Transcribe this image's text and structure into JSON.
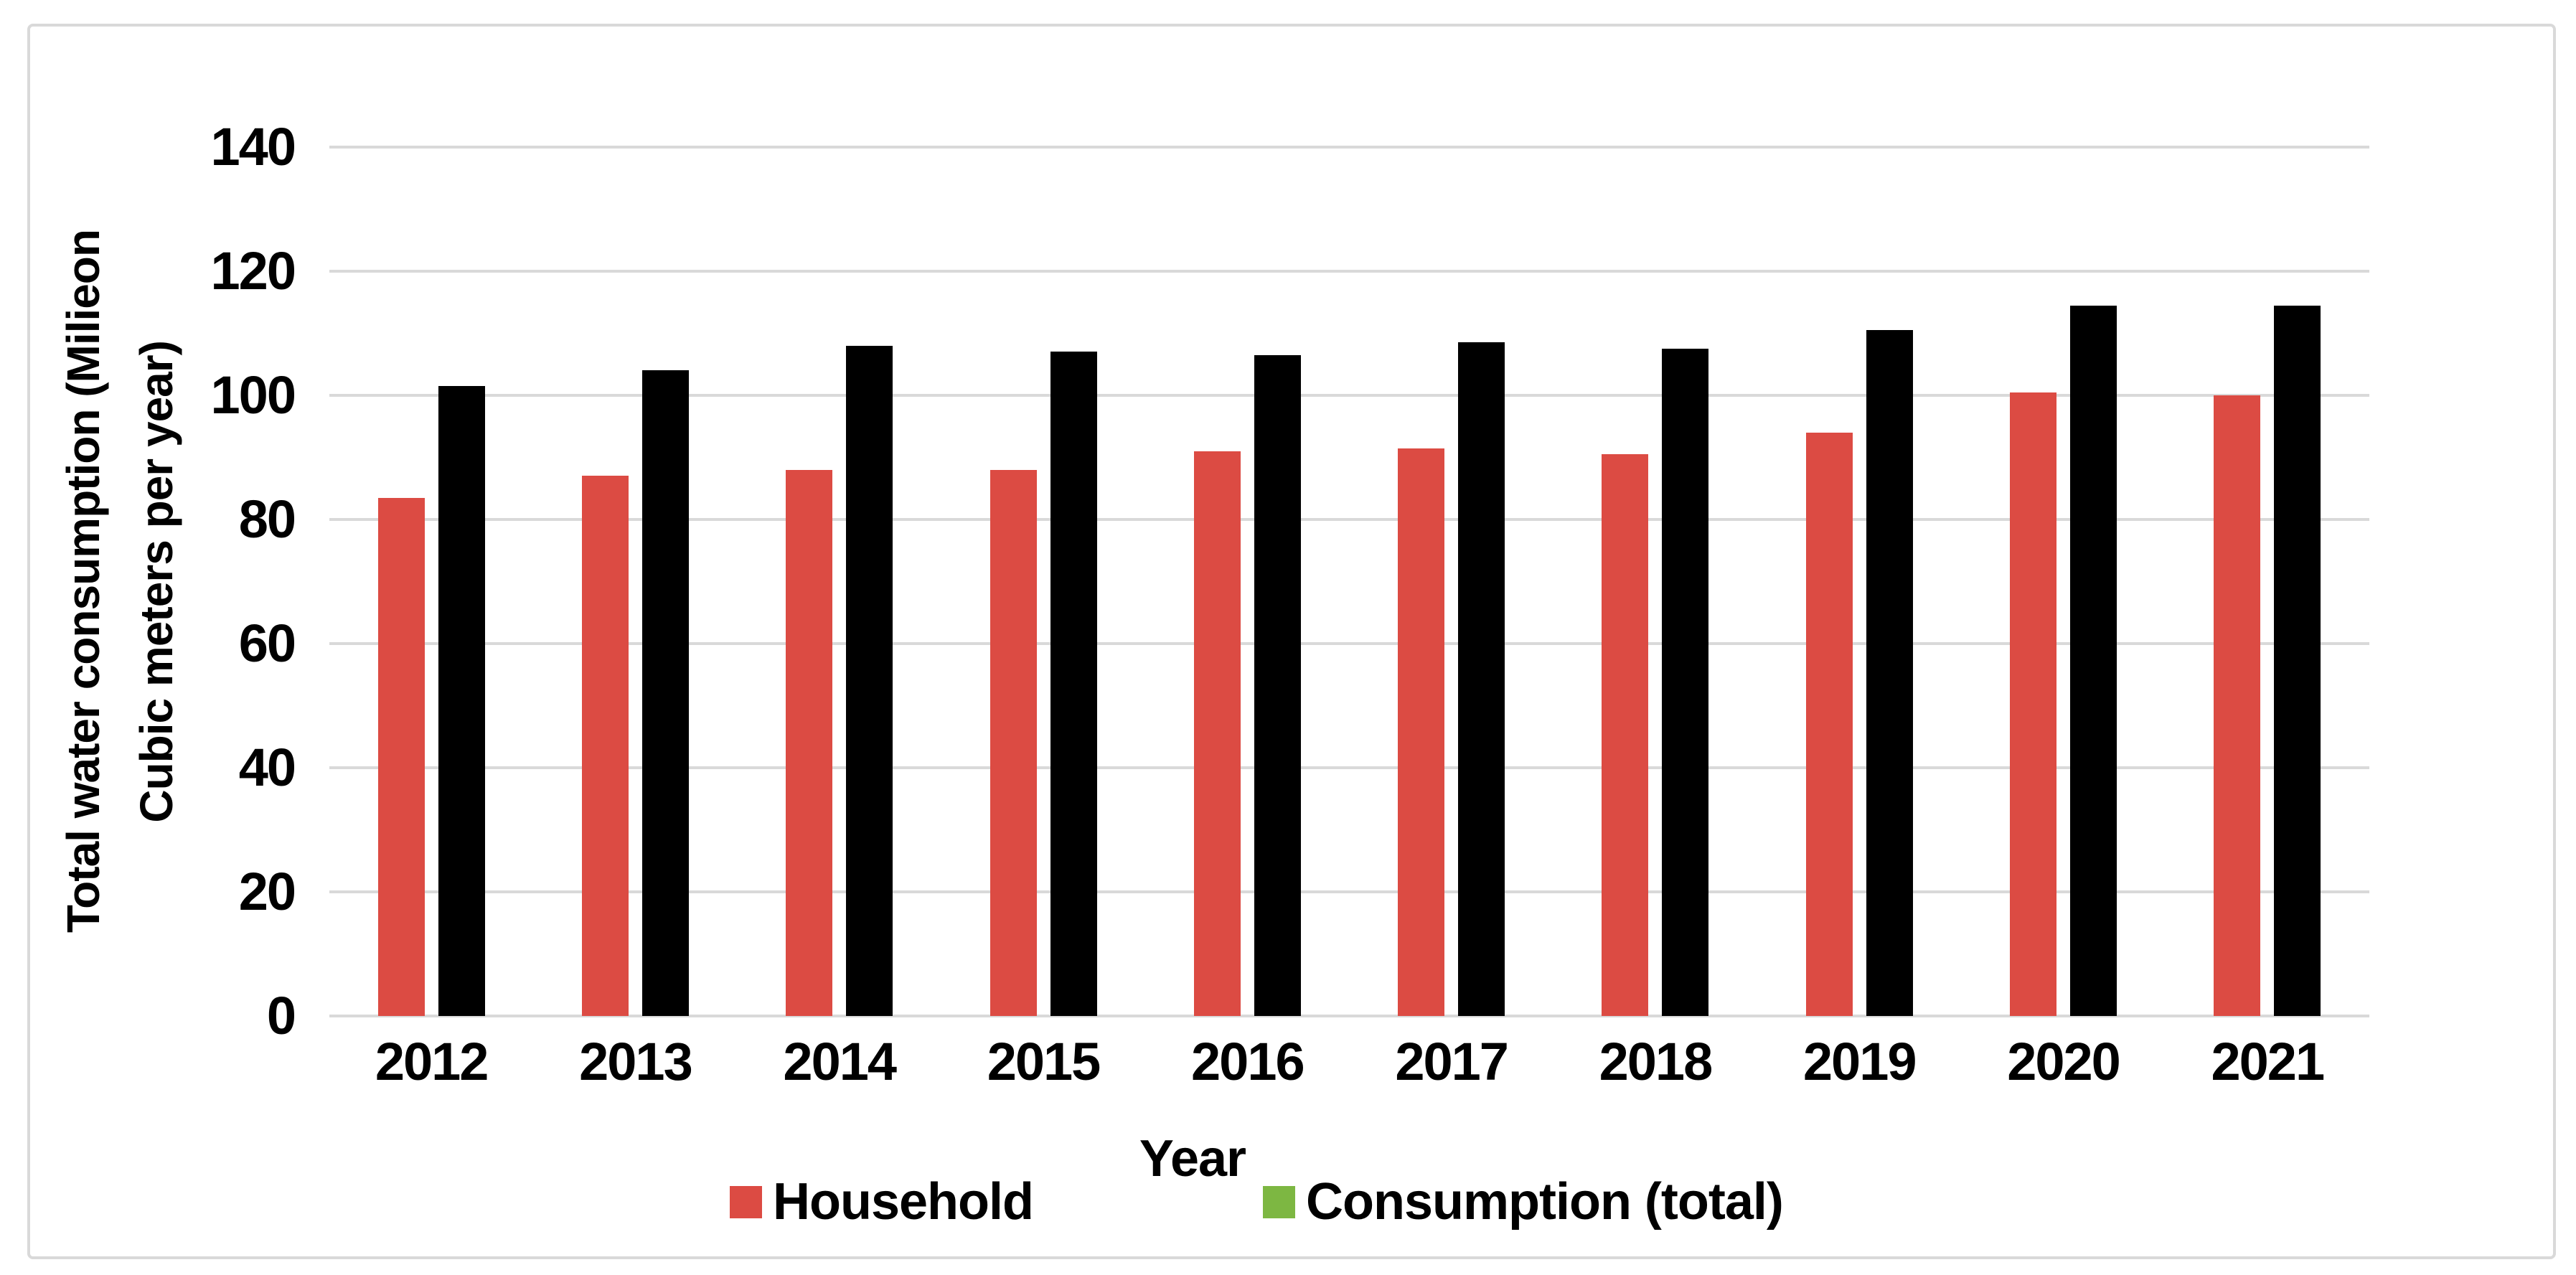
{
  "chart_data": {
    "type": "bar",
    "title": "",
    "xlabel": "Year",
    "ylabel_lines": [
      "Total water consumption (Milieon",
      "Cubic meters per year)"
    ],
    "categories": [
      "2012",
      "2013",
      "2014",
      "2015",
      "2016",
      "2017",
      "2018",
      "2019",
      "2020",
      "2021"
    ],
    "series": [
      {
        "name": "Household",
        "values": [
          83.5,
          87,
          88,
          88,
          91,
          91.5,
          90.5,
          94,
          100.5,
          100
        ],
        "bar_color": "#dc4b43",
        "legend_color": "#dc4b43"
      },
      {
        "name": "Consumption (total)",
        "values": [
          101.5,
          104,
          108,
          107,
          106.5,
          108.5,
          107.5,
          110.5,
          114.5,
          114.5
        ],
        "bar_color": "#000000",
        "legend_color": "#7db742"
      }
    ],
    "ylim": [
      0,
      140
    ],
    "ytick_step": 20,
    "yticks": [
      0,
      20,
      40,
      60,
      80,
      100,
      120,
      140
    ],
    "grid": true,
    "legend_position": "bottom"
  },
  "colors": {
    "background": "#ffffff",
    "frame_border": "#d9d9d9",
    "gridline": "#d9d9d9",
    "text": "#000000"
  }
}
